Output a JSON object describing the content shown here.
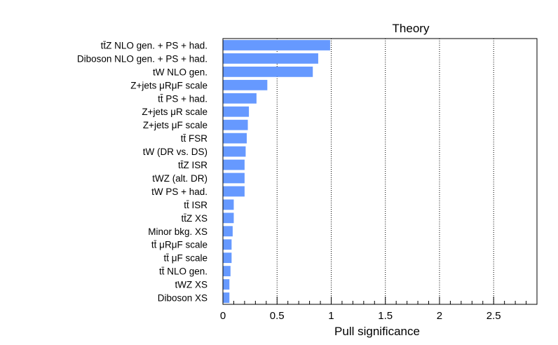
{
  "chart_data": {
    "type": "bar",
    "orientation": "horizontal",
    "title": "Theory",
    "xlabel": "Pull significance",
    "ylabel": "",
    "xlim": [
      0,
      2.9
    ],
    "xticks": [
      "0",
      "0.5",
      "1",
      "1.5",
      "2",
      "2.5"
    ],
    "grid": "vertical dotted at 0.5, 1, 1.5, 2, 2.5",
    "bar_color": "#6699ff",
    "categories": [
      "tt̄Z NLO gen. + PS + had.",
      "Diboson NLO gen. + PS + had.",
      "tW NLO gen.",
      "Z+jets  μRμF scale",
      "tt̄ PS + had.",
      "Z+jets  μR scale",
      "Z+jets  μF scale",
      "tt̄ FSR",
      "tW (DR vs. DS)",
      "tt̄Z ISR",
      "tWZ (alt. DR)",
      "tW PS + had.",
      "tt̄ ISR",
      "tt̄Z XS",
      "Minor bkg. XS",
      "tt̄ μRμF scale",
      "tt̄ μF scale",
      "tt̄ NLO gen.",
      "tWZ XS",
      "Diboson XS"
    ],
    "values": [
      0.99,
      0.88,
      0.83,
      0.41,
      0.31,
      0.24,
      0.23,
      0.22,
      0.21,
      0.2,
      0.2,
      0.2,
      0.1,
      0.1,
      0.09,
      0.08,
      0.08,
      0.07,
      0.06,
      0.06
    ]
  }
}
